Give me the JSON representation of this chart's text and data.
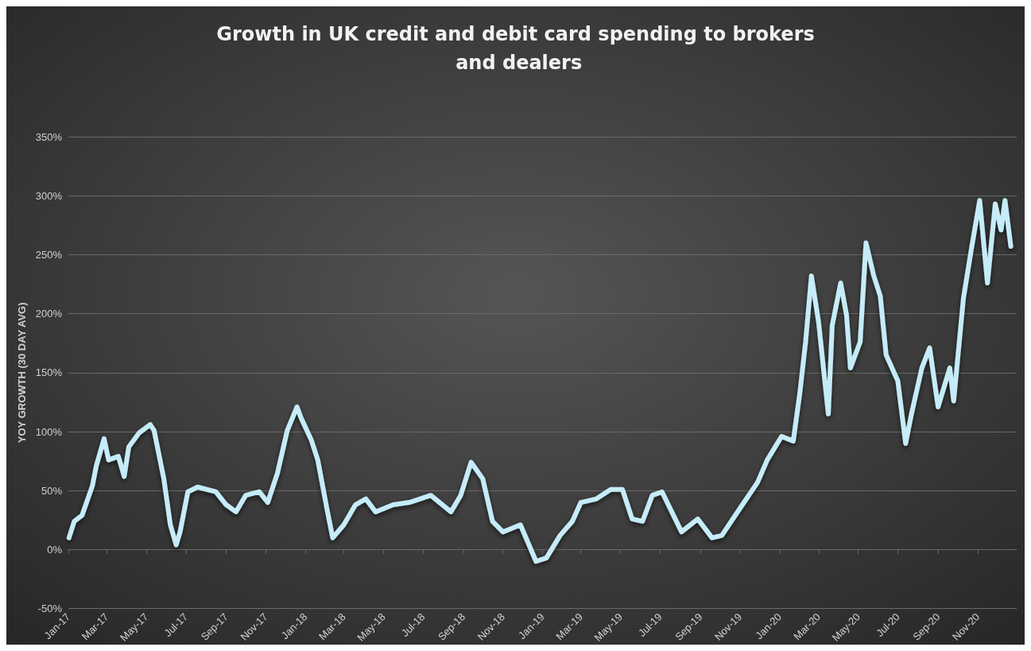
{
  "chart_data": {
    "type": "line",
    "title": "Growth in UK credit and debit card spending to brokers and dealers",
    "ylabel": "YOY GROWTH (30 DAY AVG)",
    "grid": "y",
    "marker": "none",
    "line_style": "solid",
    "xlim": [
      "2017-01-01",
      "2020-12-31"
    ],
    "xticks": [
      {
        "value": "2017-01-01",
        "label": "Jan-17"
      },
      {
        "value": "2017-03-01",
        "label": "Mar-17"
      },
      {
        "value": "2017-05-01",
        "label": "May-17"
      },
      {
        "value": "2017-07-01",
        "label": "Jul-17"
      },
      {
        "value": "2017-09-01",
        "label": "Sep-17"
      },
      {
        "value": "2017-11-01",
        "label": "Nov-17"
      },
      {
        "value": "2018-01-01",
        "label": "Jan-18"
      },
      {
        "value": "2018-03-01",
        "label": "Mar-18"
      },
      {
        "value": "2018-05-01",
        "label": "May-18"
      },
      {
        "value": "2018-07-01",
        "label": "Jul-18"
      },
      {
        "value": "2018-09-01",
        "label": "Sep-18"
      },
      {
        "value": "2018-11-01",
        "label": "Nov-18"
      },
      {
        "value": "2019-01-01",
        "label": "Jan-19"
      },
      {
        "value": "2019-03-01",
        "label": "Mar-19"
      },
      {
        "value": "2019-05-01",
        "label": "May-19"
      },
      {
        "value": "2019-07-01",
        "label": "Jul-19"
      },
      {
        "value": "2019-09-01",
        "label": "Sep-19"
      },
      {
        "value": "2019-11-01",
        "label": "Nov-19"
      },
      {
        "value": "2020-01-01",
        "label": "Jan-20"
      },
      {
        "value": "2020-03-01",
        "label": "Mar-20"
      },
      {
        "value": "2020-05-01",
        "label": "May-20"
      },
      {
        "value": "2020-07-01",
        "label": "Jul-20"
      },
      {
        "value": "2020-09-01",
        "label": "Sep-20"
      },
      {
        "value": "2020-11-01",
        "label": "Nov-20"
      }
    ],
    "ylim": [
      -50,
      350
    ],
    "yticks": [
      {
        "value": -50,
        "label": "-50%"
      },
      {
        "value": 0,
        "label": "0%"
      },
      {
        "value": 50,
        "label": "50%"
      },
      {
        "value": 100,
        "label": "100%"
      },
      {
        "value": 150,
        "label": "150%"
      },
      {
        "value": 200,
        "label": "200%"
      },
      {
        "value": 250,
        "label": "250%"
      },
      {
        "value": 300,
        "label": "300%"
      },
      {
        "value": 350,
        "label": "350%"
      }
    ],
    "x": [
      "2017-01-02",
      "2017-01-10",
      "2017-01-22",
      "2017-02-07",
      "2017-02-13",
      "2017-02-25",
      "2017-03-04",
      "2017-03-19",
      "2017-03-28",
      "2017-04-04",
      "2017-04-20",
      "2017-05-07",
      "2017-05-13",
      "2017-05-28",
      "2017-06-07",
      "2017-06-16",
      "2017-06-22",
      "2017-07-04",
      "2017-07-19",
      "2017-08-16",
      "2017-09-01",
      "2017-09-16",
      "2017-10-01",
      "2017-10-22",
      "2017-11-04",
      "2017-11-19",
      "2017-12-04",
      "2017-12-19",
      "2017-12-25",
      "2018-01-10",
      "2018-01-20",
      "2018-02-04",
      "2018-02-12",
      "2018-03-01",
      "2018-03-19",
      "2018-04-04",
      "2018-04-19",
      "2018-05-16",
      "2018-06-10",
      "2018-07-13",
      "2018-08-13",
      "2018-08-28",
      "2018-09-13",
      "2018-10-01",
      "2018-10-16",
      "2018-11-01",
      "2018-11-28",
      "2018-12-22",
      "2019-01-07",
      "2019-01-28",
      "2019-02-16",
      "2019-03-01",
      "2019-03-25",
      "2019-04-16",
      "2019-05-04",
      "2019-05-19",
      "2019-06-04",
      "2019-06-19",
      "2019-07-04",
      "2019-08-03",
      "2019-08-28",
      "2019-09-19",
      "2019-10-04",
      "2019-11-01",
      "2019-11-28",
      "2019-12-13",
      "2020-01-04",
      "2020-01-22",
      "2020-02-01",
      "2020-02-10",
      "2020-02-19",
      "2020-03-01",
      "2020-03-16",
      "2020-03-22",
      "2020-04-04",
      "2020-04-13",
      "2020-04-19",
      "2020-05-04",
      "2020-05-13",
      "2020-05-25",
      "2020-06-04",
      "2020-06-13",
      "2020-07-01",
      "2020-07-13",
      "2020-07-22",
      "2020-08-07",
      "2020-08-19",
      "2020-09-01",
      "2020-09-19",
      "2020-09-25",
      "2020-10-10",
      "2020-10-22",
      "2020-11-04",
      "2020-11-16",
      "2020-11-28",
      "2020-12-07",
      "2020-12-13",
      "2020-12-22"
    ],
    "series": [
      {
        "color": "#c5ecf8",
        "values": [
          10,
          24,
          29,
          54,
          71,
          94,
          76,
          79,
          62,
          87,
          99,
          106,
          101,
          60,
          21,
          4,
          15,
          49,
          53,
          49,
          38,
          32,
          46,
          49,
          40,
          65,
          101,
          121,
          112,
          93,
          76,
          32,
          10,
          21,
          38,
          43,
          32,
          38,
          40,
          46,
          32,
          46,
          74,
          60,
          24,
          15,
          21,
          -10,
          -7,
          12,
          24,
          40,
          43,
          51,
          51,
          26,
          24,
          46,
          49,
          15,
          26,
          10,
          12,
          35,
          57,
          76,
          96,
          92,
          132,
          176,
          232,
          193,
          115,
          190,
          226,
          199,
          154,
          176,
          260,
          232,
          215,
          165,
          143,
          90,
          115,
          154,
          171,
          121,
          154,
          126,
          213,
          254,
          296,
          226,
          293,
          271,
          296,
          257
        ]
      }
    ]
  }
}
